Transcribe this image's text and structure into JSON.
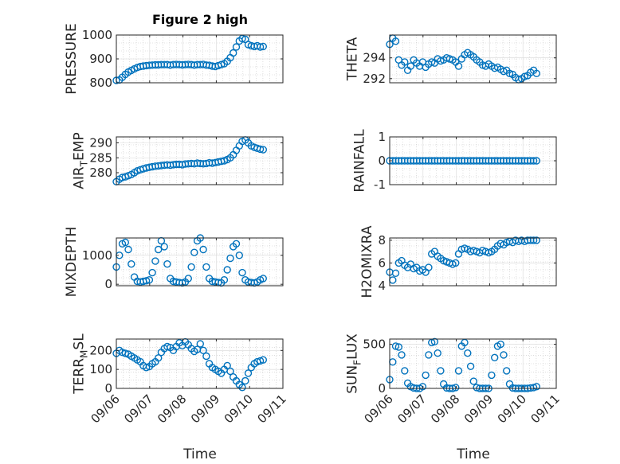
{
  "figure": {
    "title": "Figure 2 high",
    "xlabel": "Time"
  },
  "style": {
    "marker_color": "#0072bd",
    "axis_color": "#262626",
    "grid": true
  },
  "x_axis": {
    "ticks": [
      "09/06",
      "09/07",
      "09/08",
      "09/09",
      "09/10",
      "09/11"
    ],
    "range_days": [
      0,
      5
    ]
  },
  "chart_data": [
    {
      "type": "scatter",
      "ylabel": "PRESSURE",
      "ylim": [
        800,
        1000
      ],
      "yticks": [
        800,
        900,
        1000
      ],
      "x_time": [
        "09/06 00:00",
        "09/06 02:10",
        "09/06 04:19",
        "09/06 06:29",
        "09/06 08:38",
        "09/06 10:48",
        "09/06 12:58",
        "09/06 15:07",
        "09/06 17:17",
        "09/06 19:26",
        "09/06 21:36",
        "09/06 23:46",
        "09/07 01:55",
        "09/07 04:05",
        "09/07 06:14",
        "09/07 08:24",
        "09/07 10:34",
        "09/07 12:43",
        "09/07 14:53",
        "09/07 17:02",
        "09/07 19:12",
        "09/07 21:22",
        "09/07 23:31",
        "09/08 01:41",
        "09/08 03:50",
        "09/08 06:00",
        "09/08 08:10",
        "09/08 10:19",
        "09/08 12:29",
        "09/08 14:38",
        "09/08 16:48",
        "09/08 18:58",
        "09/08 21:07",
        "09/08 23:17",
        "09/09 01:26",
        "09/09 03:36",
        "09/09 05:46",
        "09/09 07:55",
        "09/09 10:05",
        "09/09 12:14",
        "09/09 14:24",
        "09/09 16:34",
        "09/09 18:43",
        "09/09 20:53",
        "09/09 23:02",
        "09/10 01:12",
        "09/10 03:22",
        "09/10 05:31",
        "09/10 07:41",
        "09/10 09:50"
      ],
      "y": [
        810,
        812,
        823,
        835,
        845,
        852,
        858,
        864,
        868,
        870,
        872,
        873,
        874,
        875,
        875,
        876,
        876,
        876,
        874,
        876,
        877,
        876,
        875,
        876,
        877,
        876,
        874,
        876,
        876,
        877,
        874,
        873,
        870,
        868,
        872,
        876,
        880,
        890,
        905,
        925,
        950,
        975,
        985,
        982,
        960,
        955,
        952,
        955,
        950,
        952
      ]
    },
    {
      "type": "scatter",
      "ylabel": "THETA",
      "ylim": [
        291.6,
        296.2
      ],
      "yticks": [
        292,
        294
      ],
      "x_time": [
        "09/06 00:00",
        "09/06 02:10",
        "09/06 04:19",
        "09/06 06:29",
        "09/06 08:38",
        "09/06 10:48",
        "09/06 12:58",
        "09/06 15:07",
        "09/06 17:17",
        "09/06 19:26",
        "09/06 21:36",
        "09/06 23:46",
        "09/07 01:55",
        "09/07 04:05",
        "09/07 06:14",
        "09/07 08:24",
        "09/07 10:34",
        "09/07 12:43",
        "09/07 14:53",
        "09/07 17:02",
        "09/07 19:12",
        "09/07 21:22",
        "09/07 23:31",
        "09/08 01:41",
        "09/08 03:50",
        "09/08 06:00",
        "09/08 08:10",
        "09/08 10:19",
        "09/08 12:29",
        "09/08 14:38",
        "09/08 16:48",
        "09/08 18:58",
        "09/08 21:07",
        "09/08 23:17",
        "09/09 01:26",
        "09/09 03:36",
        "09/09 05:46",
        "09/09 07:55",
        "09/09 10:05",
        "09/09 12:14",
        "09/09 14:24",
        "09/09 16:34",
        "09/09 18:43",
        "09/09 20:53",
        "09/09 23:02",
        "09/10 01:12",
        "09/10 03:22",
        "09/10 05:31",
        "09/10 07:41",
        "09/10 09:50"
      ],
      "y": [
        295.3,
        295.9,
        295.6,
        293.8,
        293.3,
        293.6,
        292.8,
        293.2,
        293.8,
        293.5,
        293.2,
        293.6,
        293.1,
        293.4,
        293.6,
        293.5,
        293.9,
        293.7,
        293.8,
        294.0,
        293.9,
        293.8,
        293.6,
        293.2,
        293.9,
        294.3,
        294.5,
        294.3,
        294.1,
        293.8,
        293.6,
        293.3,
        293.2,
        293.4,
        293.2,
        293.0,
        293.1,
        292.9,
        292.7,
        292.8,
        292.5,
        292.4,
        292.1,
        291.9,
        292.0,
        292.2,
        292.3,
        292.6,
        292.8,
        292.5
      ]
    },
    {
      "type": "scatter",
      "ylabel": "AIR_TEMP",
      "ylim": [
        276,
        292
      ],
      "yticks": [
        280,
        285,
        290
      ],
      "x_time": [
        "09/06 00:00",
        "09/06 02:10",
        "09/06 04:19",
        "09/06 06:29",
        "09/06 08:38",
        "09/06 10:48",
        "09/06 12:58",
        "09/06 15:07",
        "09/06 17:17",
        "09/06 19:26",
        "09/06 21:36",
        "09/06 23:46",
        "09/07 01:55",
        "09/07 04:05",
        "09/07 06:14",
        "09/07 08:24",
        "09/07 10:34",
        "09/07 12:43",
        "09/07 14:53",
        "09/07 17:02",
        "09/07 19:12",
        "09/07 21:22",
        "09/07 23:31",
        "09/08 01:41",
        "09/08 03:50",
        "09/08 06:00",
        "09/08 08:10",
        "09/08 10:19",
        "09/08 12:29",
        "09/08 14:38",
        "09/08 16:48",
        "09/08 18:58",
        "09/08 21:07",
        "09/08 23:17",
        "09/09 01:26",
        "09/09 03:36",
        "09/09 05:46",
        "09/09 07:55",
        "09/09 10:05",
        "09/09 12:14",
        "09/09 14:24",
        "09/09 16:34",
        "09/09 18:43",
        "09/09 20:53",
        "09/09 23:02",
        "09/10 01:12",
        "09/10 03:22",
        "09/10 05:31",
        "09/10 07:41",
        "09/10 09:50"
      ],
      "y": [
        277.0,
        277.8,
        278.4,
        278.6,
        279.0,
        279.4,
        280.0,
        280.6,
        281.0,
        281.3,
        281.6,
        281.8,
        282.0,
        282.2,
        282.3,
        282.4,
        282.5,
        282.6,
        282.5,
        282.7,
        282.8,
        282.8,
        282.7,
        282.9,
        283.0,
        283.1,
        283.0,
        283.2,
        283.1,
        283.0,
        283.1,
        283.3,
        283.2,
        283.4,
        283.6,
        283.8,
        284.0,
        284.4,
        285.0,
        286.0,
        287.5,
        289.0,
        290.5,
        291.0,
        290.0,
        289.0,
        288.5,
        288.2,
        287.9,
        287.7
      ]
    },
    {
      "type": "scatter",
      "ylabel": "RAINFALL",
      "ylim": [
        -1,
        1
      ],
      "yticks": [
        -1,
        0,
        1
      ],
      "x_time": [
        "09/06 00:00",
        "09/06 02:10",
        "09/06 04:19",
        "09/06 06:29",
        "09/06 08:38",
        "09/06 10:48",
        "09/06 12:58",
        "09/06 15:07",
        "09/06 17:17",
        "09/06 19:26",
        "09/06 21:36",
        "09/06 23:46",
        "09/07 01:55",
        "09/07 04:05",
        "09/07 06:14",
        "09/07 08:24",
        "09/07 10:34",
        "09/07 12:43",
        "09/07 14:53",
        "09/07 17:02",
        "09/07 19:12",
        "09/07 21:22",
        "09/07 23:31",
        "09/08 01:41",
        "09/08 03:50",
        "09/08 06:00",
        "09/08 08:10",
        "09/08 10:19",
        "09/08 12:29",
        "09/08 14:38",
        "09/08 16:48",
        "09/08 18:58",
        "09/08 21:07",
        "09/08 23:17",
        "09/09 01:26",
        "09/09 03:36",
        "09/09 05:46",
        "09/09 07:55",
        "09/09 10:05",
        "09/09 12:14",
        "09/09 14:24",
        "09/09 16:34",
        "09/09 18:43",
        "09/09 20:53",
        "09/09 23:02",
        "09/10 01:12",
        "09/10 03:22",
        "09/10 05:31",
        "09/10 07:41",
        "09/10 09:50"
      ],
      "y": [
        0,
        0,
        0,
        0,
        0,
        0,
        0,
        0,
        0,
        0,
        0,
        0,
        0,
        0,
        0,
        0,
        0,
        0,
        0,
        0,
        0,
        0,
        0,
        0,
        0,
        0,
        0,
        0,
        0,
        0,
        0,
        0,
        0,
        0,
        0,
        0,
        0,
        0,
        0,
        0,
        0,
        0,
        0,
        0,
        0,
        0,
        0,
        0,
        0,
        0
      ]
    },
    {
      "type": "scatter",
      "ylabel": "MIXDEPTH",
      "ylim": [
        -50,
        1600
      ],
      "yticks": [
        0,
        1000
      ],
      "x_time": [
        "09/06 00:00",
        "09/06 02:10",
        "09/06 04:19",
        "09/06 06:29",
        "09/06 08:38",
        "09/06 10:48",
        "09/06 12:58",
        "09/06 15:07",
        "09/06 17:17",
        "09/06 19:26",
        "09/06 21:36",
        "09/06 23:46",
        "09/07 01:55",
        "09/07 04:05",
        "09/07 06:14",
        "09/07 08:24",
        "09/07 10:34",
        "09/07 12:43",
        "09/07 14:53",
        "09/07 17:02",
        "09/07 19:12",
        "09/07 21:22",
        "09/07 23:31",
        "09/08 01:41",
        "09/08 03:50",
        "09/08 06:00",
        "09/08 08:10",
        "09/08 10:19",
        "09/08 12:29",
        "09/08 14:38",
        "09/08 16:48",
        "09/08 18:58",
        "09/08 21:07",
        "09/08 23:17",
        "09/09 01:26",
        "09/09 03:36",
        "09/09 05:46",
        "09/09 07:55",
        "09/09 10:05",
        "09/09 12:14",
        "09/09 14:24",
        "09/09 16:34",
        "09/09 18:43",
        "09/09 20:53",
        "09/09 23:02",
        "09/10 01:12",
        "09/10 03:22",
        "09/10 05:31",
        "09/10 07:41",
        "09/10 09:50"
      ],
      "y": [
        600,
        1000,
        1400,
        1450,
        1200,
        700,
        250,
        100,
        80,
        100,
        120,
        150,
        400,
        800,
        1200,
        1500,
        1300,
        700,
        200,
        100,
        80,
        60,
        50,
        80,
        200,
        600,
        1100,
        1500,
        1600,
        1200,
        600,
        200,
        100,
        80,
        60,
        50,
        150,
        500,
        900,
        1300,
        1400,
        1000,
        400,
        150,
        80,
        60,
        50,
        80,
        150,
        200
      ]
    },
    {
      "type": "scatter",
      "ylabel": "H2OMIXRA",
      "ylim": [
        4,
        8.2
      ],
      "yticks": [
        4,
        6,
        8
      ],
      "x_time": [
        "09/06 00:00",
        "09/06 02:10",
        "09/06 04:19",
        "09/06 06:29",
        "09/06 08:38",
        "09/06 10:48",
        "09/06 12:58",
        "09/06 15:07",
        "09/06 17:17",
        "09/06 19:26",
        "09/06 21:36",
        "09/06 23:46",
        "09/07 01:55",
        "09/07 04:05",
        "09/07 06:14",
        "09/07 08:24",
        "09/07 10:34",
        "09/07 12:43",
        "09/07 14:53",
        "09/07 17:02",
        "09/07 19:12",
        "09/07 21:22",
        "09/07 23:31",
        "09/08 01:41",
        "09/08 03:50",
        "09/08 06:00",
        "09/08 08:10",
        "09/08 10:19",
        "09/08 12:29",
        "09/08 14:38",
        "09/08 16:48",
        "09/08 18:58",
        "09/08 21:07",
        "09/08 23:17",
        "09/09 01:26",
        "09/09 03:36",
        "09/09 05:46",
        "09/09 07:55",
        "09/09 10:05",
        "09/09 12:14",
        "09/09 14:24",
        "09/09 16:34",
        "09/09 18:43",
        "09/09 20:53",
        "09/09 23:02",
        "09/10 01:12",
        "09/10 03:22",
        "09/10 05:31",
        "09/10 07:41",
        "09/10 09:50"
      ],
      "y": [
        5.2,
        4.5,
        5.1,
        6.0,
        6.2,
        5.8,
        5.6,
        5.9,
        5.5,
        5.6,
        5.3,
        5.4,
        5.2,
        5.6,
        6.8,
        7.0,
        6.6,
        6.4,
        6.2,
        6.1,
        6.0,
        5.9,
        6.0,
        6.8,
        7.2,
        7.3,
        7.2,
        7.0,
        7.1,
        7.0,
        6.9,
        7.1,
        7.0,
        6.9,
        7.0,
        7.2,
        7.5,
        7.7,
        7.6,
        7.8,
        7.9,
        7.8,
        8.0,
        7.9,
        8.0,
        7.9,
        8.0,
        8.0,
        8.0,
        8.0
      ]
    },
    {
      "type": "scatter",
      "ylabel": "TERR_MSL",
      "ylim": [
        0,
        260
      ],
      "yticks": [
        0,
        100,
        200
      ],
      "x_time": [
        "09/06 00:00",
        "09/06 02:10",
        "09/06 04:19",
        "09/06 06:29",
        "09/06 08:38",
        "09/06 10:48",
        "09/06 12:58",
        "09/06 15:07",
        "09/06 17:17",
        "09/06 19:26",
        "09/06 21:36",
        "09/06 23:46",
        "09/07 01:55",
        "09/07 04:05",
        "09/07 06:14",
        "09/07 08:24",
        "09/07 10:34",
        "09/07 12:43",
        "09/07 14:53",
        "09/07 17:02",
        "09/07 19:12",
        "09/07 21:22",
        "09/07 23:31",
        "09/08 01:41",
        "09/08 03:50",
        "09/08 06:00",
        "09/08 08:10",
        "09/08 10:19",
        "09/08 12:29",
        "09/08 14:38",
        "09/08 16:48",
        "09/08 18:58",
        "09/08 21:07",
        "09/08 23:17",
        "09/09 01:26",
        "09/09 03:36",
        "09/09 05:46",
        "09/09 07:55",
        "09/09 10:05",
        "09/09 12:14",
        "09/09 14:24",
        "09/09 16:34",
        "09/09 18:43",
        "09/09 20:53",
        "09/09 23:02",
        "09/10 01:12",
        "09/10 03:22",
        "09/10 05:31",
        "09/10 07:41",
        "09/10 09:50"
      ],
      "y": [
        185,
        200,
        190,
        185,
        180,
        170,
        160,
        150,
        140,
        120,
        110,
        115,
        130,
        140,
        160,
        190,
        210,
        220,
        215,
        200,
        220,
        240,
        225,
        245,
        230,
        210,
        195,
        205,
        235,
        200,
        170,
        130,
        110,
        100,
        90,
        80,
        100,
        120,
        90,
        60,
        40,
        20,
        5,
        40,
        80,
        110,
        130,
        140,
        145,
        150
      ]
    },
    {
      "type": "scatter",
      "ylabel": "SUN_FLUX",
      "ylim": [
        0,
        560
      ],
      "yticks": [
        0,
        500
      ],
      "x_time": [
        "09/06 00:00",
        "09/06 02:10",
        "09/06 04:19",
        "09/06 06:29",
        "09/06 08:38",
        "09/06 10:48",
        "09/06 12:58",
        "09/06 15:07",
        "09/06 17:17",
        "09/06 19:26",
        "09/06 21:36",
        "09/06 23:46",
        "09/07 01:55",
        "09/07 04:05",
        "09/07 06:14",
        "09/07 08:24",
        "09/07 10:34",
        "09/07 12:43",
        "09/07 14:53",
        "09/07 17:02",
        "09/07 19:12",
        "09/07 21:22",
        "09/07 23:31",
        "09/08 01:41",
        "09/08 03:50",
        "09/08 06:00",
        "09/08 08:10",
        "09/08 10:19",
        "09/08 12:29",
        "09/08 14:38",
        "09/08 16:48",
        "09/08 18:58",
        "09/08 21:07",
        "09/08 23:17",
        "09/09 01:26",
        "09/09 03:36",
        "09/09 05:46",
        "09/09 07:55",
        "09/09 10:05",
        "09/09 12:14",
        "09/09 14:24",
        "09/09 16:34",
        "09/09 18:43",
        "09/09 20:53",
        "09/09 23:02",
        "09/10 01:12",
        "09/10 03:22",
        "09/10 05:31",
        "09/10 07:41",
        "09/10 09:50"
      ],
      "y": [
        100,
        300,
        480,
        470,
        380,
        200,
        60,
        20,
        5,
        0,
        0,
        20,
        150,
        380,
        520,
        530,
        400,
        200,
        50,
        5,
        0,
        0,
        10,
        200,
        480,
        520,
        400,
        250,
        80,
        10,
        0,
        0,
        0,
        0,
        150,
        350,
        480,
        500,
        380,
        200,
        50,
        5,
        0,
        0,
        0,
        0,
        0,
        5,
        10,
        20
      ]
    }
  ]
}
